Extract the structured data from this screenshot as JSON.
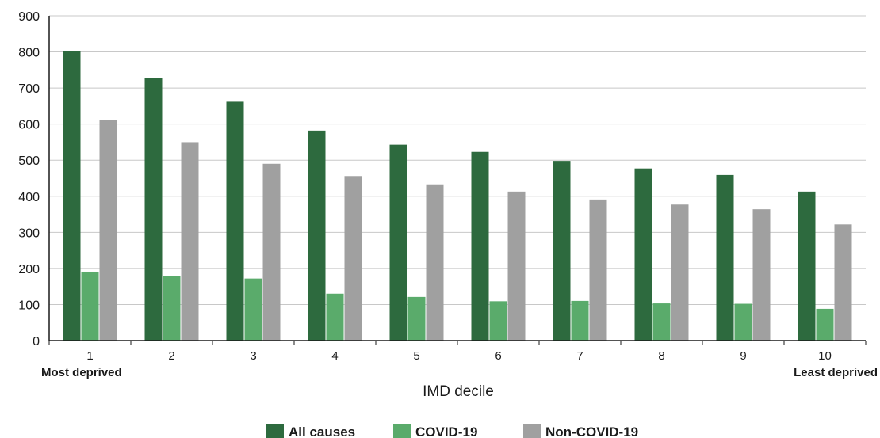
{
  "chart_data": {
    "type": "bar",
    "categories": [
      "1",
      "2",
      "3",
      "4",
      "5",
      "6",
      "7",
      "8",
      "9",
      "10"
    ],
    "category_sublabels": {
      "first": "Most deprived",
      "last": "Least deprived"
    },
    "series": [
      {
        "name": "All causes",
        "color": "#2d6a3e",
        "values": [
          803,
          728,
          662,
          582,
          543,
          523,
          498,
          477,
          459,
          413
        ]
      },
      {
        "name": "COVID-19",
        "color": "#5aab6b",
        "values": [
          191,
          179,
          172,
          130,
          121,
          109,
          110,
          103,
          102,
          88
        ]
      },
      {
        "name": "Non-COVID-19",
        "color": "#a0a0a0",
        "values": [
          612,
          550,
          490,
          456,
          433,
          413,
          391,
          377,
          364,
          322
        ]
      }
    ],
    "xlabel": "IMD decile",
    "ylabel": "",
    "ylim": [
      0,
      900
    ],
    "yticks": [
      0,
      100,
      200,
      300,
      400,
      500,
      600,
      700,
      800,
      900
    ],
    "grid": "horizontal",
    "legend_position": "bottom-center"
  }
}
